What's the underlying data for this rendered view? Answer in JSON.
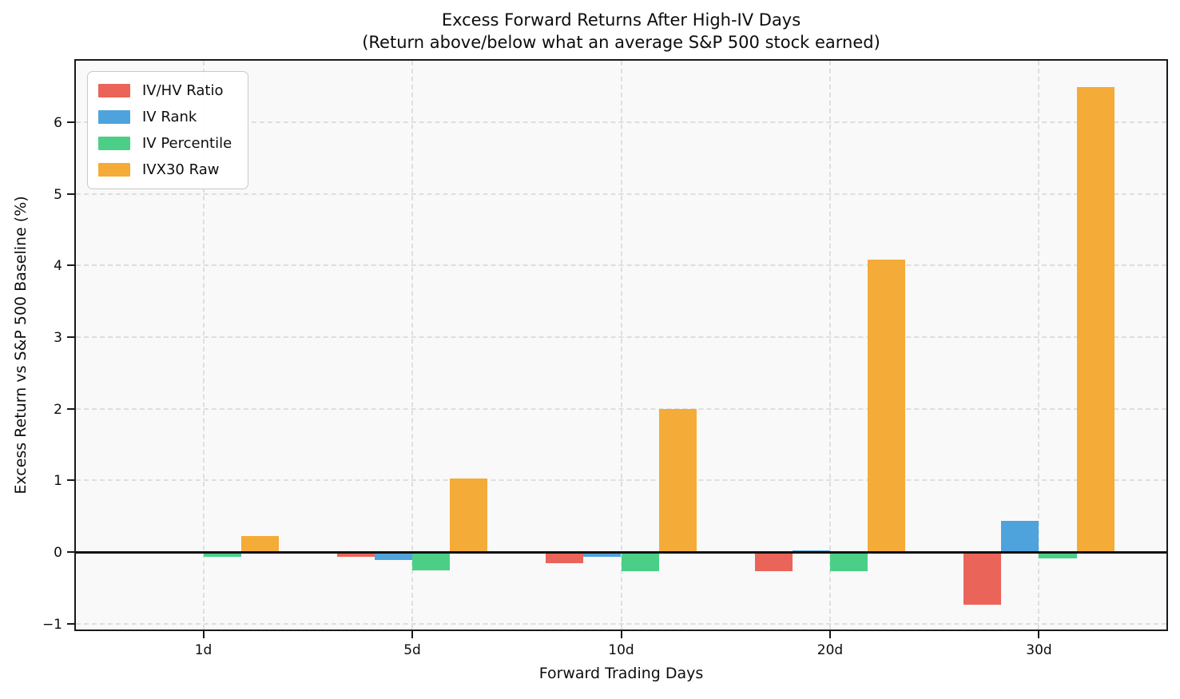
{
  "chart_data": {
    "type": "bar",
    "title": "Excess Forward Returns After High-IV Days",
    "subtitle": "(Return above/below what an average S&P 500 stock earned)",
    "xlabel": "Forward Trading Days",
    "ylabel": "Excess Return vs S&P 500 Baseline (%)",
    "categories": [
      "1d",
      "5d",
      "10d",
      "20d",
      "30d"
    ],
    "series": [
      {
        "name": "IV/HV Ratio",
        "color": "#EB6459",
        "values": [
          -0.02,
          -0.06,
          -0.16,
          -0.27,
          -0.73
        ]
      },
      {
        "name": "IV Rank",
        "color": "#4FA3DC",
        "values": [
          0.01,
          -0.11,
          -0.07,
          0.02,
          0.44
        ]
      },
      {
        "name": "IV Percentile",
        "color": "#4BCF87",
        "values": [
          -0.07,
          -0.26,
          -0.27,
          -0.27,
          -0.09
        ]
      },
      {
        "name": "IVX30 Raw",
        "color": "#F4AB38",
        "values": [
          0.22,
          1.03,
          2.0,
          4.08,
          6.49
        ]
      }
    ],
    "yticks": [
      -1,
      0,
      1,
      2,
      3,
      4,
      5,
      6
    ],
    "ylim": [
      -1.08,
      6.86
    ],
    "xlim": [
      -0.61,
      4.61
    ],
    "bar_group_width_ratio": 0.72,
    "grid": "dashed both axes",
    "zero_line": true,
    "legend_position": "upper left",
    "colors": {
      "plot_bg": "#f9f9f9",
      "figure_bg": "#ffffff",
      "grid": "#dedede",
      "spine": "#1a1a1a",
      "zero_line": "#111111",
      "text": "#0d0d0d"
    }
  }
}
